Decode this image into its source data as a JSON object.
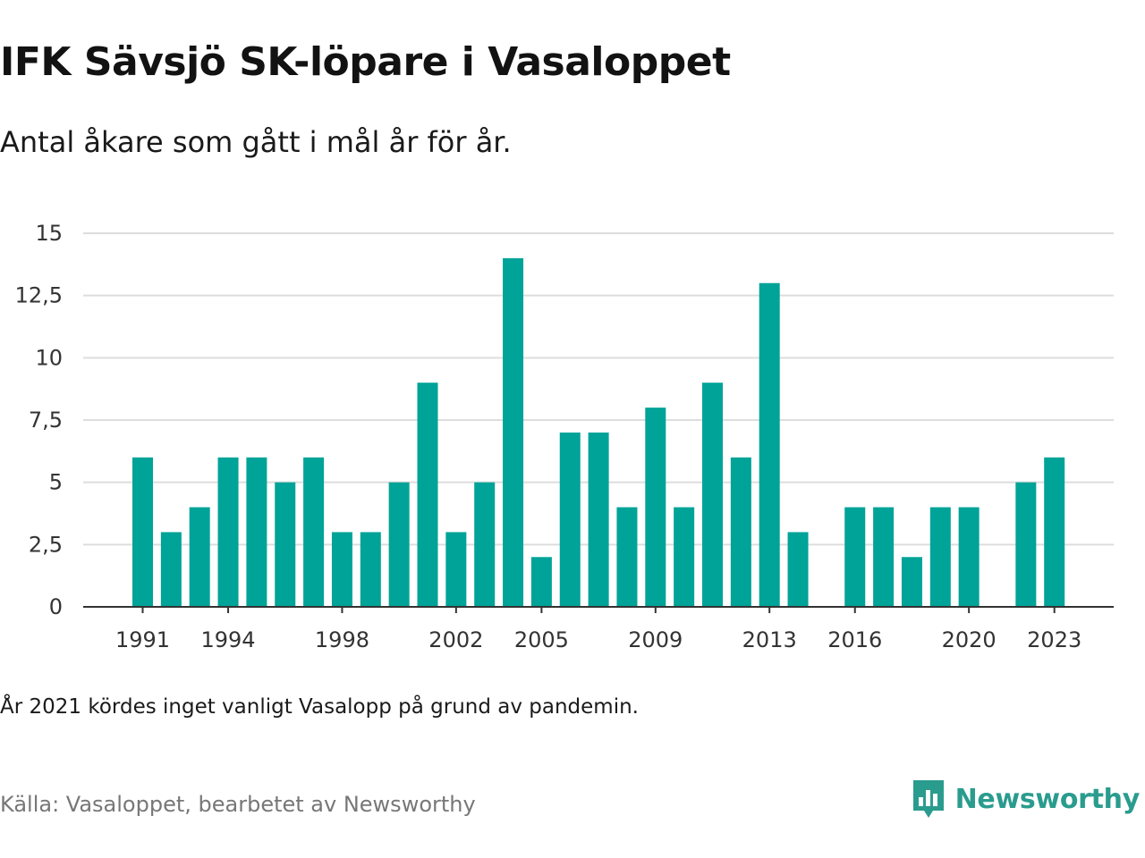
{
  "header": {
    "title": "IFK Sävsjö SK-löpare i Vasaloppet",
    "subtitle": "Antal åkare som gått i mål år för år."
  },
  "footer": {
    "note": "År 2021 kördes inget vanligt Vasalopp på grund av pandemin.",
    "source": "Källa: Vasaloppet, bearbetet av Newsworthy",
    "brand": "Newsworthy",
    "brand_icon": "newsworthy-logo-icon"
  },
  "colors": {
    "bar": "#00a398",
    "grid": "#dddddd",
    "axis": "#333333",
    "brand": "#2a9c8e"
  },
  "chart_data": {
    "type": "bar",
    "title": "IFK Sävsjö SK-löpare i Vasaloppet",
    "subtitle": "Antal åkare som gått i mål år för år.",
    "xlabel": "",
    "ylabel": "",
    "ylim": [
      0,
      15
    ],
    "grid": true,
    "y_ticks": [
      0,
      2.5,
      5,
      7.5,
      10,
      12.5,
      15
    ],
    "y_tick_labels": [
      "0",
      "2,5",
      "5",
      "7,5",
      "10",
      "12,5",
      "15"
    ],
    "x_tick_labels": [
      "1991",
      "1994",
      "1998",
      "2002",
      "2005",
      "2009",
      "2013",
      "2016",
      "2020",
      "2023"
    ],
    "categories": [
      "1991",
      "1992",
      "1993",
      "1994",
      "1995",
      "1996",
      "1997",
      "1998",
      "1999",
      "2000",
      "2001",
      "2002",
      "2003",
      "2004",
      "2005",
      "2006",
      "2007",
      "2008",
      "2009",
      "2010",
      "2011",
      "2012",
      "2013",
      "2014",
      "2015",
      "2016",
      "2017",
      "2018",
      "2019",
      "2020",
      "2021",
      "2022",
      "2023"
    ],
    "values": [
      6,
      3,
      4,
      6,
      6,
      5,
      6,
      3,
      3,
      5,
      9,
      3,
      5,
      14,
      2,
      7,
      7,
      4,
      8,
      4,
      9,
      6,
      13,
      3,
      null,
      4,
      4,
      2,
      4,
      4,
      null,
      5,
      6
    ]
  }
}
